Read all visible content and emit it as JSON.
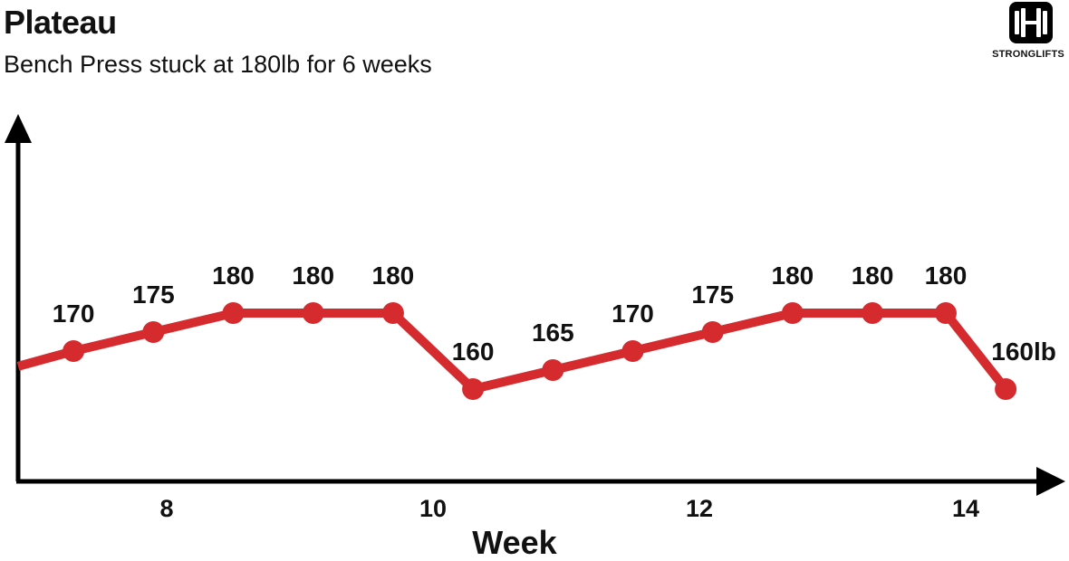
{
  "header": {
    "title": "Plateau",
    "subtitle": "Bench Press stuck at 180lb for 6 weeks"
  },
  "logo": {
    "icon": "barbell-icon",
    "text": "STRONGLIFTS"
  },
  "colors": {
    "line": "#d52b2e",
    "axis": "#000000",
    "text": "#111111"
  },
  "chart_data": {
    "type": "line",
    "title": "Plateau",
    "subtitle": "Bench Press stuck at 180lb for 6 weeks",
    "xlabel": "Week",
    "ylabel": "",
    "xticks": [
      8,
      10,
      12,
      14
    ],
    "xlim": [
      7.0,
      14.6
    ],
    "ylim": [
      120,
      210
    ],
    "grid": false,
    "series": [
      {
        "x": [
          6.7,
          7.3,
          7.9,
          8.5,
          9.1,
          9.7,
          10.3,
          10.9,
          11.5,
          12.1,
          12.7,
          13.3,
          13.85,
          14.3
        ],
        "values": [
          166,
          170,
          175,
          180,
          180,
          180,
          160,
          165,
          170,
          175,
          180,
          180,
          180,
          160
        ],
        "labels": [
          "",
          "170",
          "175",
          "180",
          "180",
          "180",
          "160",
          "165",
          "170",
          "175",
          "180",
          "180",
          "180",
          "160lb"
        ]
      }
    ]
  }
}
